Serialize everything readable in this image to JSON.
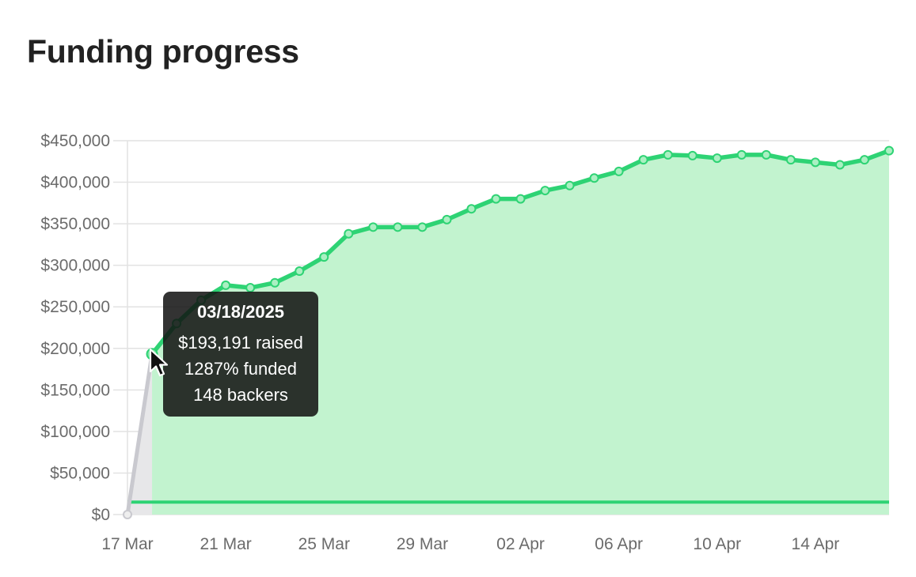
{
  "page": {
    "title": "Funding progress"
  },
  "tooltip": {
    "date": "03/18/2025",
    "raised": "$193,191 raised",
    "funded": "1287% funded",
    "backers": "148 backers"
  },
  "chart_data": {
    "type": "area",
    "title": "Funding progress",
    "x_dates": [
      "2025-03-17",
      "2025-03-18",
      "2025-03-19",
      "2025-03-20",
      "2025-03-21",
      "2025-03-22",
      "2025-03-23",
      "2025-03-24",
      "2025-03-25",
      "2025-03-26",
      "2025-03-27",
      "2025-03-28",
      "2025-03-29",
      "2025-03-30",
      "2025-03-31",
      "2025-04-01",
      "2025-04-02",
      "2025-04-03",
      "2025-04-04",
      "2025-04-05",
      "2025-04-06",
      "2025-04-07",
      "2025-04-08",
      "2025-04-09",
      "2025-04-10",
      "2025-04-11",
      "2025-04-12",
      "2025-04-13",
      "2025-04-14",
      "2025-04-15",
      "2025-04-16",
      "2025-04-17"
    ],
    "values": [
      0,
      193191,
      230000,
      258000,
      276000,
      273000,
      279000,
      293000,
      310000,
      338000,
      346000,
      346000,
      346000,
      355000,
      368000,
      380000,
      380000,
      390000,
      396000,
      405000,
      413000,
      427000,
      433000,
      432000,
      429000,
      433000,
      433000,
      427000,
      424000,
      421000,
      427000,
      438000
    ],
    "goal": 15000,
    "x_tick_labels": [
      "17 Mar",
      "21 Mar",
      "25 Mar",
      "29 Mar",
      "02 Apr",
      "06 Apr",
      "10 Apr",
      "14 Apr"
    ],
    "x_tick_dates": [
      "2025-03-17",
      "2025-03-21",
      "2025-03-25",
      "2025-03-29",
      "2025-04-02",
      "2025-04-06",
      "2025-04-10",
      "2025-04-14"
    ],
    "y_ticks": [
      0,
      50000,
      100000,
      150000,
      200000,
      250000,
      300000,
      350000,
      400000,
      450000
    ],
    "y_tick_labels": [
      "$0",
      "$50,000",
      "$100,000",
      "$150,000",
      "$200,000",
      "$250,000",
      "$300,000",
      "$350,000",
      "$400,000",
      "$450,000"
    ],
    "ylim": [
      0,
      450000
    ],
    "grid": true,
    "highlighted_date": "2025-03-18",
    "colors": {
      "line": "#2ed374",
      "fill": "#c2f3cf",
      "goal_line": "#2ed374",
      "pre_period_line": "#c9c9cf",
      "pre_period_fill": "#e7e7e9",
      "grid": "#e2e2e2"
    }
  }
}
